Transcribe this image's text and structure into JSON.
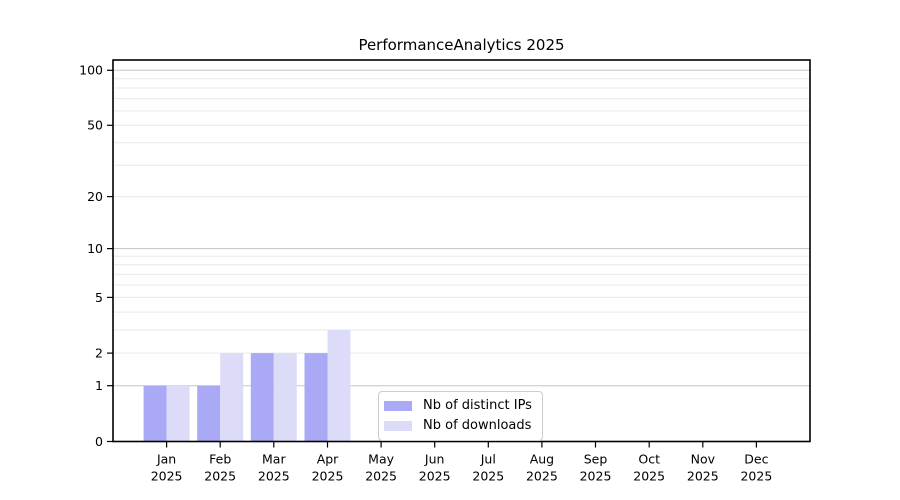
{
  "chart_data": {
    "type": "bar",
    "title": "PerformanceAnalytics 2025",
    "categories": [
      "Jan",
      "Feb",
      "Mar",
      "Apr",
      "May",
      "Jun",
      "Jul",
      "Aug",
      "Sep",
      "Oct",
      "Nov",
      "Dec"
    ],
    "category_year": "2025",
    "series": [
      {
        "name": "Nb of distinct IPs",
        "color": "#a9a9f5",
        "values": [
          1,
          1,
          2,
          2,
          0,
          0,
          0,
          0,
          0,
          0,
          0,
          0
        ]
      },
      {
        "name": "Nb of downloads",
        "color": "#dcdcf8",
        "values": [
          1,
          2,
          2,
          3,
          0,
          0,
          0,
          0,
          0,
          0,
          0,
          0
        ]
      }
    ],
    "y_axis": {
      "scale": "log1p",
      "ticks": [
        0,
        1,
        2,
        5,
        10,
        20,
        50,
        100
      ],
      "minor_ticks": [
        3,
        4,
        6,
        7,
        8,
        9,
        30,
        40,
        60,
        70,
        80,
        90
      ],
      "range": [
        0,
        110
      ]
    },
    "x_axis": {
      "label_lines": 2
    },
    "legend": {
      "position": "bottom-center"
    },
    "grid": true,
    "colors": {
      "grid_major": "#c5c5c5",
      "grid_minor": "#e9e9e9",
      "axis": "#000000"
    }
  }
}
